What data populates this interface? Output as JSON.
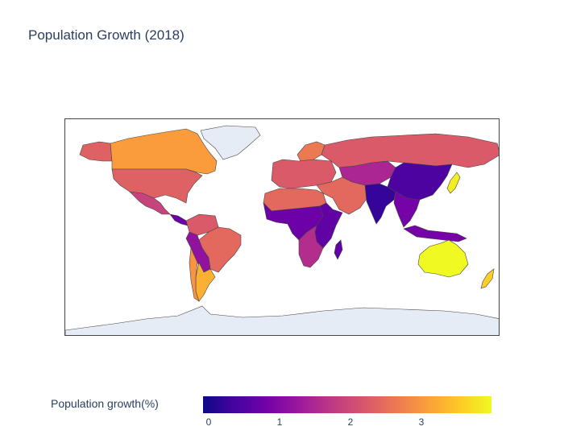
{
  "title": "Population Growth (2018)",
  "colorbar": {
    "title": "Population growth(%)",
    "ticks": [
      "0",
      "1",
      "2",
      "3"
    ],
    "range": [
      0,
      3.9
    ],
    "colorscale": [
      "#0d0887",
      "#46039f",
      "#7201a8",
      "#9c179e",
      "#bd3786",
      "#d8576b",
      "#ed7953",
      "#fb9f3a",
      "#fdca26",
      "#f0f921"
    ]
  },
  "map": {
    "projection": "equirectangular",
    "no_data_color": "#e5ecf6",
    "border_color": "#444444",
    "regions": [
      {
        "name": "Canada",
        "value": 3.0
      },
      {
        "name": "United States",
        "value": 2.3
      },
      {
        "name": "Alaska",
        "value": 2.3
      },
      {
        "name": "Greenland",
        "value": null
      },
      {
        "name": "Mexico",
        "value": 1.9
      },
      {
        "name": "Central America",
        "value": 0.8
      },
      {
        "name": "Colombia / Venezuela",
        "value": 2.2
      },
      {
        "name": "Brazil",
        "value": 2.4
      },
      {
        "name": "Bolivia / Paraguay",
        "value": 1.2
      },
      {
        "name": "Argentina",
        "value": 3.2
      },
      {
        "name": "Chile",
        "value": 2.9
      },
      {
        "name": "Russia",
        "value": 2.2
      },
      {
        "name": "Europe",
        "value": 2.2
      },
      {
        "name": "Scandinavia",
        "value": 2.6
      },
      {
        "name": "Middle East",
        "value": 2.4
      },
      {
        "name": "Central Asia",
        "value": 1.5
      },
      {
        "name": "China",
        "value": 0.5
      },
      {
        "name": "India",
        "value": 0.3
      },
      {
        "name": "Southeast Asia",
        "value": 0.9
      },
      {
        "name": "Japan",
        "value": 3.8
      },
      {
        "name": "North Africa",
        "value": 2.4
      },
      {
        "name": "West & Central Africa",
        "value": 0.8
      },
      {
        "name": "East Africa",
        "value": 0.7
      },
      {
        "name": "Southern Africa",
        "value": 1.6
      },
      {
        "name": "Indonesia",
        "value": 0.9
      },
      {
        "name": "Australia",
        "value": 3.9
      },
      {
        "name": "New Zealand",
        "value": 3.5
      },
      {
        "name": "Antarctica",
        "value": null
      }
    ]
  }
}
